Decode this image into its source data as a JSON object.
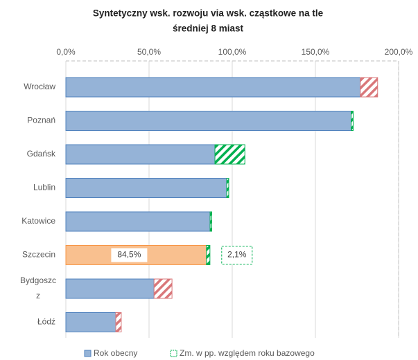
{
  "chart_data": {
    "type": "stacked-barh",
    "title": [
      "Syntetyczny wsk. rozwoju via wsk. cząstkowe na tle",
      "średniej 8 miast"
    ],
    "categories": [
      "Wrocław",
      "Poznań",
      "Gdańsk",
      "Lublin",
      "Katowice",
      "Szczecin",
      "Bydgoszcz",
      "Łódź"
    ],
    "series": [
      {
        "name": "Rok obecny",
        "color": "#95b3d7",
        "colors": [
          "#95b3d7",
          "#95b3d7",
          "#95b3d7",
          "#95b3d7",
          "#95b3d7",
          "#f9c08f",
          "#95b3d7",
          "#95b3d7"
        ],
        "values": [
          177,
          171.5,
          89.6,
          96.7,
          86.7,
          84.5,
          53,
          30
        ],
        "value_labels": [
          null,
          null,
          null,
          null,
          null,
          "84,5%",
          null,
          null
        ]
      },
      {
        "name": "Zm. w pp. względem roku bazowego",
        "color": "#00b050",
        "negative_color": "#d9777a",
        "values": [
          -10.4,
          1.2,
          18,
          1.2,
          1,
          2.1,
          -10.8,
          -3.3
        ],
        "value_labels": [
          null,
          null,
          null,
          null,
          null,
          "2,1%",
          null,
          null
        ]
      }
    ],
    "xlim": [
      0,
      200
    ],
    "xticks": [
      {
        "value": 0,
        "label": "0,0%"
      },
      {
        "value": 50,
        "label": "50,0%"
      },
      {
        "value": 100,
        "label": "100,0%"
      },
      {
        "value": 150,
        "label": "150,0%"
      },
      {
        "value": 200,
        "label": "200,0%"
      }
    ],
    "grid": true
  }
}
